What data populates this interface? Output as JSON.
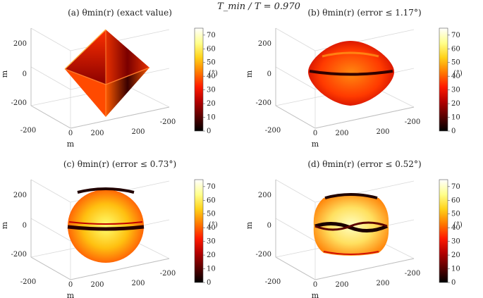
{
  "suptitle": "T_min / T = 0.970",
  "colormap": {
    "name": "hot",
    "stops": [
      "#000000",
      "#5a0000",
      "#b30000",
      "#ff1a00",
      "#ff7a00",
      "#ffd21a",
      "#ffff8c",
      "#ffffff"
    ]
  },
  "chart_data": [
    {
      "type": "heatmap",
      "panel": "(a)",
      "title": "(a) θmin(r) (exact value)",
      "shape": "octahedron",
      "zlabel": "m",
      "xlabel": "m",
      "ylabel": "",
      "z_ticks": [
        "200",
        "0",
        "-200"
      ],
      "x_ticks": [
        "-200",
        "0",
        "200"
      ],
      "y_ticks": [
        "200",
        "-200"
      ],
      "colorbar": {
        "min": 0,
        "max": 73,
        "ticks": [
          "0",
          "10",
          "20",
          "30",
          "40",
          "50",
          "60",
          "70"
        ],
        "unit": "(°)"
      }
    },
    {
      "type": "heatmap",
      "panel": "(b)",
      "title": "(b) θmin(r) (error ≤ 1.17°)",
      "shape": "rounded-octahedron",
      "zlabel": "m",
      "xlabel": "m",
      "ylabel": "",
      "z_ticks": [
        "200",
        "0",
        "-200"
      ],
      "x_ticks": [
        "-200",
        "0",
        "200"
      ],
      "y_ticks": [
        "200",
        "-200"
      ],
      "colorbar": {
        "min": 0,
        "max": 73,
        "ticks": [
          "0",
          "10",
          "20",
          "30",
          "40",
          "50",
          "60",
          "70"
        ],
        "unit": "(°)"
      }
    },
    {
      "type": "heatmap",
      "panel": "(c)",
      "title": "(c) θmin(r) (error ≤ 0.73°)",
      "shape": "sphere",
      "zlabel": "m",
      "xlabel": "m",
      "ylabel": "",
      "z_ticks": [
        "200",
        "0",
        "-200"
      ],
      "x_ticks": [
        "-200",
        "0",
        "200"
      ],
      "y_ticks": [
        "200",
        "-200"
      ],
      "colorbar": {
        "min": 0,
        "max": 73,
        "ticks": [
          "0",
          "10",
          "20",
          "30",
          "40",
          "50",
          "60",
          "70"
        ],
        "unit": "(°)"
      }
    },
    {
      "type": "heatmap",
      "panel": "(d)",
      "title": "(d) θmin(r) (error ≤ 0.52°)",
      "shape": "cushion",
      "zlabel": "m",
      "xlabel": "m",
      "ylabel": "",
      "z_ticks": [
        "200",
        "0",
        "-200"
      ],
      "x_ticks": [
        "-200",
        "0",
        "200"
      ],
      "y_ticks": [
        "200",
        "-200"
      ],
      "colorbar": {
        "min": 0,
        "max": 73,
        "ticks": [
          "0",
          "10",
          "20",
          "30",
          "40",
          "50",
          "60",
          "70"
        ],
        "unit": "(°)"
      }
    }
  ]
}
